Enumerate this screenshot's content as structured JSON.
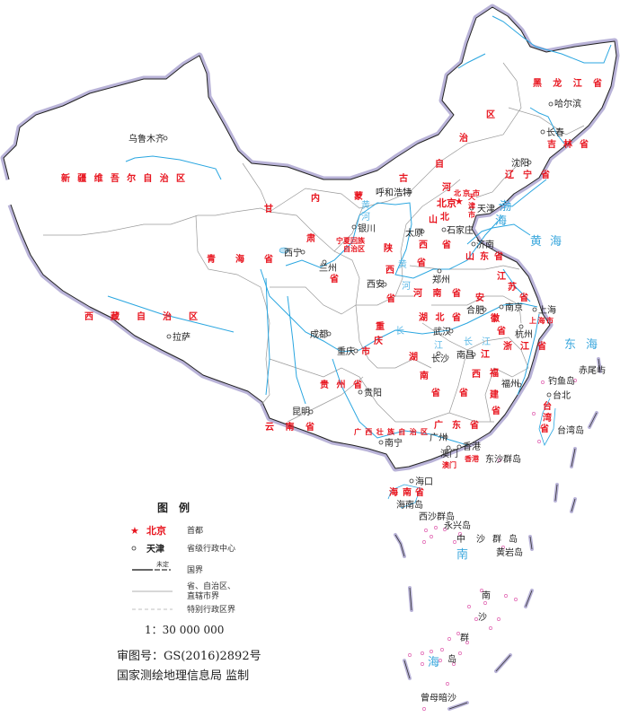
{
  "map": {
    "colors": {
      "border": "#b9b3d8",
      "province": "#9a9a9a",
      "river": "#2aa6e0",
      "label": "#e8141e",
      "island": "#e060b0"
    },
    "capital": "北京",
    "cities": [
      "乌鲁木齐",
      "哈尔滨",
      "长春",
      "沈阳",
      "呼和浩特",
      "天津",
      "石家庄",
      "太原",
      "济南",
      "银川",
      "西宁",
      "兰州",
      "西安",
      "郑州",
      "合肥",
      "南京",
      "上海",
      "杭州",
      "武汉",
      "长沙",
      "南昌",
      "福州",
      "台北",
      "成都",
      "重庆",
      "贵阳",
      "昆明",
      "拉萨",
      "南宁",
      "广州",
      "香港",
      "澳门",
      "海口"
    ],
    "provinces": [
      "黑龙江省",
      "吉林省",
      "辽宁省",
      "内蒙古自治区",
      "新疆维吾尔自治区",
      "西藏自治区",
      "甘肃省",
      "青海省",
      "宁夏回族自治区",
      "陕西省",
      "山西省",
      "河北省",
      "北京市",
      "天津市",
      "山东省",
      "河南省",
      "江苏省",
      "安徽省",
      "上海市",
      "浙江省",
      "湖北省",
      "重庆市",
      "湖南省",
      "江西省",
      "福建省",
      "贵州省",
      "云南省",
      "广西壮族自治区",
      "广东省",
      "台湾省",
      "香港",
      "澳门",
      "海南省"
    ],
    "seas": [
      "黄海",
      "东海",
      "渤海",
      "南海"
    ],
    "rivers": [
      "黄河",
      "黄河",
      "长江",
      "长江"
    ],
    "islands": [
      "海南岛",
      "西沙群岛",
      "永兴岛",
      "中沙群岛",
      "黄岩岛",
      "东沙群岛",
      "钓鱼岛",
      "赤尾屿",
      "台湾岛",
      "南沙群岛",
      "曾母暗沙"
    ]
  },
  "legend": {
    "title": "图　例",
    "capital_sample": "北京",
    "capital_desc": "首都",
    "center_sample": "天津",
    "center_desc": "省级行政中心",
    "undetermined": "未定",
    "national_border": "国界",
    "province_border_1": "省、自治区、",
    "province_border_2": "直辖市界",
    "sar_border": "特别行政区界",
    "scale": "1：30 000 000"
  },
  "footer": {
    "approval": "审图号：GS(2016)2892号",
    "publisher": "国家测绘地理信息局 监制"
  }
}
